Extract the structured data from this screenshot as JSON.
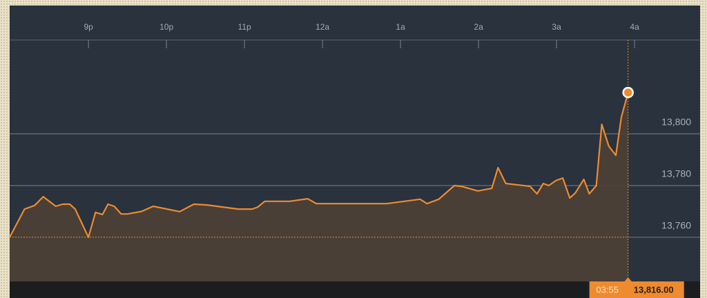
{
  "chart_data": {
    "type": "line",
    "x": [
      -4.01,
      -3.82,
      -3.69,
      -3.58,
      -3.42,
      -3.33,
      -3.24,
      -3.17,
      -3.0,
      -2.91,
      -2.82,
      -2.75,
      -2.67,
      -2.58,
      -2.5,
      -2.32,
      -2.17,
      -1.83,
      -1.65,
      -1.48,
      -1.08,
      -0.9,
      -0.83,
      -0.74,
      -0.42,
      -0.19,
      -0.08,
      0.82,
      1.25,
      1.34,
      1.49,
      1.69,
      1.78,
      1.99,
      2.17,
      2.25,
      2.35,
      2.66,
      2.75,
      2.83,
      2.9,
      2.99,
      3.08,
      3.17,
      3.24,
      3.35,
      3.42,
      3.51,
      3.58,
      3.67,
      3.76,
      3.83,
      3.9167
    ],
    "values": [
      13760,
      13770.9,
      13772.3,
      13775.7,
      13772,
      13772.8,
      13772.8,
      13770.9,
      13760,
      13769.6,
      13768.8,
      13772.8,
      13772,
      13769,
      13769,
      13770,
      13772,
      13769.9,
      13772.8,
      13772.5,
      13770.9,
      13770.9,
      13771.7,
      13773.9,
      13773.9,
      13774.9,
      13773,
      13773,
      13774.7,
      13773,
      13774.7,
      13780,
      13779.7,
      13777.9,
      13778.9,
      13786.9,
      13780.8,
      13779.7,
      13776.8,
      13780.8,
      13780,
      13781.9,
      13782.9,
      13775.2,
      13777.1,
      13782.4,
      13776.8,
      13780,
      13803.7,
      13795.2,
      13791.7,
      13806.4,
      13816
    ],
    "value_labels": [
      null,
      null,
      null,
      null,
      null,
      null,
      null,
      null,
      null,
      null,
      null,
      null,
      null,
      null,
      null,
      null,
      null,
      null,
      null,
      null,
      null,
      null,
      null,
      null,
      null,
      null,
      null,
      null,
      null,
      null,
      null,
      null,
      null,
      null,
      null,
      null,
      null,
      null,
      null,
      null,
      null,
      null,
      null,
      null,
      null,
      null,
      null,
      null,
      null,
      null,
      null,
      null,
      "13,816.00"
    ],
    "color": "#ee8b2f",
    "xlim": [
      -4.01,
      4.84
    ],
    "xticks": [
      {
        "value": -3,
        "label": "9p"
      },
      {
        "value": -2,
        "label": "10p"
      },
      {
        "value": -1,
        "label": "11p"
      },
      {
        "value": 0,
        "label": "12a"
      },
      {
        "value": 1,
        "label": "1a"
      },
      {
        "value": 2,
        "label": "2a"
      },
      {
        "value": 3,
        "label": "3a"
      },
      {
        "value": 4,
        "label": "4a"
      }
    ],
    "ylim": [
      13742.9,
      13833.1
    ],
    "yticks": [
      {
        "value": 13760,
        "label": "13,760"
      },
      {
        "value": 13780,
        "label": "13,780"
      },
      {
        "value": 13800,
        "label": "13,800"
      }
    ],
    "grid": true,
    "reference_line": 13760,
    "cursor": {
      "x": 3.9167,
      "label": "03:55"
    }
  }
}
